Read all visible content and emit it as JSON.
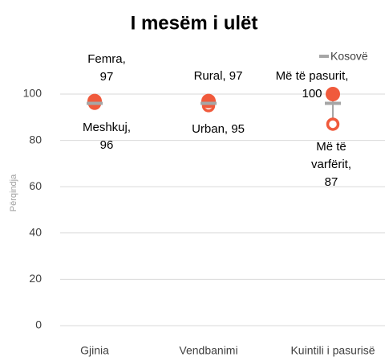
{
  "chart_data": {
    "type": "dot",
    "title": "I mesëm i ulët",
    "y_label": "Përqindja",
    "categories": [
      "Gjinia",
      "Vendbanimi",
      "Kuintili i pasurisë"
    ],
    "ylim": [
      0,
      100
    ],
    "yticks": [
      0,
      20,
      40,
      60,
      80,
      100
    ],
    "grid": true,
    "legend": "top-right",
    "series": [
      {
        "marker": "filled",
        "color": "#f05a3c",
        "values": [
          97,
          97,
          100
        ],
        "value_labels": [
          "Femra, 97",
          "Rural, 97",
          "Më të pasurit, 100"
        ]
      },
      {
        "marker": "open",
        "color": "#f05a3c",
        "values": [
          96,
          95,
          87
        ],
        "value_labels": [
          "Meshkuj, 96",
          "Urban, 95",
          "Më të varfërit, 87"
        ]
      },
      {
        "name": "Kosovë",
        "marker": "dash",
        "color": "#a6a6a6",
        "values": [
          96,
          96,
          96
        ]
      }
    ]
  }
}
